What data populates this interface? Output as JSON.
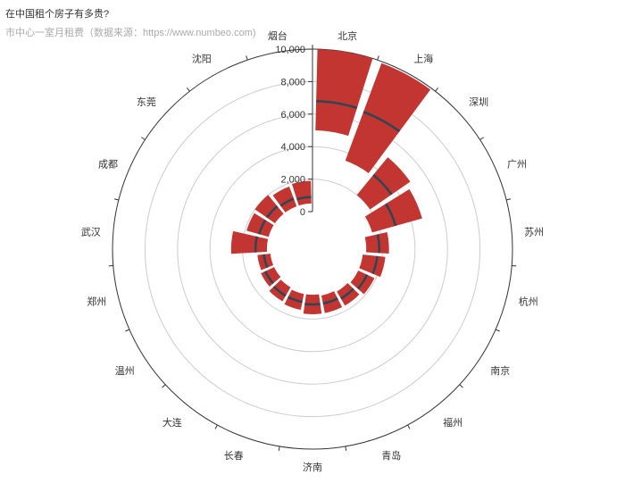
{
  "chart_data": {
    "type": "bar",
    "polar": true,
    "title": "在中国租个房子有多贵?",
    "subtitle": "市中心一室月租费（数据来源：https://www.numbeo.com)",
    "categories": [
      "北京",
      "上海",
      "深圳",
      "广州",
      "苏州",
      "杭州",
      "南京",
      "福州",
      "青岛",
      "济南",
      "长春",
      "大连",
      "温州",
      "郑州",
      "武汉",
      "成都",
      "东莞",
      "沈阳",
      "烟台"
    ],
    "series": [
      {
        "type": "range-bar",
        "low": [
          5000,
          3500,
          2000,
          1500,
          1000,
          800,
          800,
          700,
          600,
          500,
          500,
          400,
          300,
          300,
          500,
          500,
          500,
          500,
          500
        ],
        "high": [
          10000,
          9900,
          5000,
          4700,
          2400,
          2200,
          1900,
          1700,
          1700,
          1700,
          1500,
          1400,
          1200,
          1100,
          2700,
          1900,
          2000,
          1800,
          1900
        ]
      },
      {
        "type": "average-marker",
        "values": [
          6800,
          6700,
          3600,
          3000,
          1800,
          1700,
          1400,
          1200,
          1100,
          1100,
          1000,
          1000,
          900,
          700,
          1200,
          1100,
          1100,
          1000,
          900
        ]
      }
    ],
    "radius_axis": {
      "min": 0,
      "max": 10000,
      "ticks": [
        "0",
        "2,000",
        "4,000",
        "6,000",
        "8,000",
        "10,000"
      ]
    },
    "colors": {
      "bar": "#c23531",
      "marker": "#2f4554",
      "grid": "#cccccc",
      "axis": "#333333"
    }
  }
}
